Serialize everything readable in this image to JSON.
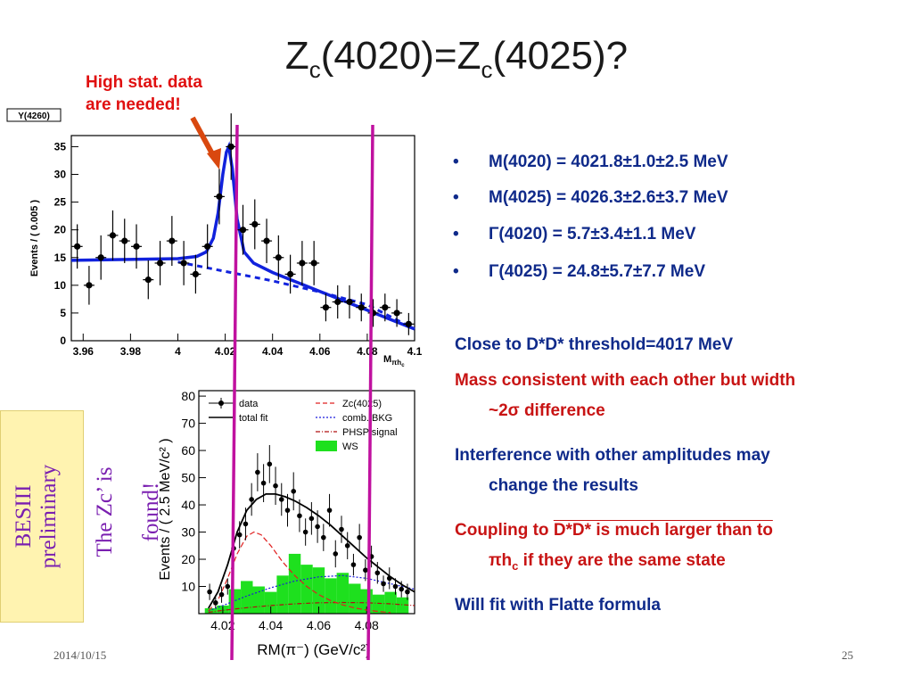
{
  "slide": {
    "title_main": "Z",
    "title_sub1": "c",
    "title_mid": "(4020)=Z",
    "title_sub2": "c",
    "title_end": "(4025)?",
    "annotation_line1": "High stat. data",
    "annotation_line2": "are needed!",
    "bullets": [
      "M(4020) = 4021.8±1.0±2.5 MeV",
      "M(4025) = 4026.3±2.6±3.7 MeV",
      "Γ(4020) =   5.7±3.4±1.1 MeV",
      "Γ(4025) = 24.8±5.7±7.7 MeV"
    ],
    "bullet_symbol": "•",
    "para1": "Close to D*D* threshold=4017 MeV",
    "para2_line1": "Mass consistent with each other but width",
    "para2_line2": "~2σ difference",
    "para3_line1": "Interference with other amplitudes may",
    "para3_line2": "change the results",
    "para4_line1a": "Coupling to ",
    "para4_line1b": "D*D* is much larger than to",
    "para4_line2a": "πh",
    "para4_line2sub": "c",
    "para4_line2b": " if they are the same state",
    "para5": "Will fit with Flatte formula",
    "besiii_label1": "BESIII",
    "besiii_label2": "preliminary",
    "zc_label1": "The Zc’ is",
    "zc_label2": "found!",
    "date": "2014/10/15",
    "page_number": "25"
  },
  "colors": {
    "blue_text": "#0f2a8a",
    "red_text": "#c81414",
    "arrow": "#d9480f",
    "magenta_lines": "#c0119f",
    "fit_blue": "#1122dd",
    "ws_green": "#1ee01e"
  },
  "chart_data": [
    {
      "type": "scatter",
      "label_box": "Y(4260)",
      "ylabel": "Events / ( 0.005 )",
      "xlabel": "M",
      "xlabel_sub": "πh",
      "xlabel_subsub": "c",
      "xlim": [
        3.955,
        4.1
      ],
      "ylim": [
        0,
        37
      ],
      "xticks": [
        "3.96",
        "3.98",
        "4",
        "4.02",
        "4.04",
        "4.06",
        "4.08",
        "4.1"
      ],
      "xtick_values": [
        3.96,
        3.98,
        4.0,
        4.02,
        4.04,
        4.06,
        4.08,
        4.1
      ],
      "yticks": [
        "0",
        "5",
        "10",
        "15",
        "20",
        "25",
        "30",
        "35"
      ],
      "ytick_values": [
        0,
        5,
        10,
        15,
        20,
        25,
        30,
        35
      ],
      "points": {
        "x": [
          3.9575,
          3.9625,
          3.9675,
          3.9725,
          3.9775,
          3.9825,
          3.9875,
          3.9925,
          3.9975,
          4.0025,
          4.0075,
          4.0125,
          4.0175,
          4.0225,
          4.0275,
          4.0325,
          4.0375,
          4.0425,
          4.0475,
          4.0525,
          4.0575,
          4.0625,
          4.0675,
          4.0725,
          4.0775,
          4.0825,
          4.0875,
          4.0925,
          4.0975
        ],
        "y": [
          17,
          10,
          15,
          19,
          18,
          17,
          11,
          14,
          18,
          14,
          12,
          17,
          26,
          35,
          20,
          21,
          18,
          15,
          12,
          14,
          14,
          6,
          7,
          7,
          6,
          5,
          6,
          5,
          3
        ],
        "err": [
          4,
          3.5,
          4,
          4.5,
          4,
          4,
          3.5,
          4,
          4.5,
          4,
          3.5,
          4,
          5,
          6,
          4.5,
          4.5,
          4,
          4,
          3.5,
          4,
          4,
          2.5,
          3,
          3,
          2.5,
          2.5,
          2.5,
          2.5,
          2
        ]
      },
      "total_fit": {
        "x": [
          3.955,
          3.97,
          3.985,
          4.0,
          4.008,
          4.012,
          4.015,
          4.017,
          4.019,
          4.0205,
          4.0215,
          4.023,
          4.025,
          4.028,
          4.032,
          4.04,
          4.05,
          4.06,
          4.07,
          4.08,
          4.09,
          4.1
        ],
        "y": [
          14.5,
          14.6,
          14.7,
          14.8,
          15.2,
          16.0,
          18.5,
          23,
          30,
          34,
          35,
          31,
          22,
          16,
          14,
          12.3,
          10.6,
          8.9,
          7.2,
          5.5,
          3.8,
          2.1
        ]
      },
      "background": {
        "x": [
          4.0,
          4.02,
          4.04,
          4.06,
          4.08,
          4.1
        ],
        "y": [
          14.2,
          12.5,
          10.8,
          8.8,
          6.5,
          2.1
        ]
      }
    },
    {
      "type": "scatter",
      "ylabel": "Events / ( 2.5 MeV/c² )",
      "xlabel": "RM(π⁻) (GeV/c²)",
      "xlim": [
        4.01,
        4.1
      ],
      "ylim": [
        0,
        82
      ],
      "xticks": [
        "4.02",
        "4.04",
        "4.06",
        "4.08"
      ],
      "xtick_values": [
        4.02,
        4.04,
        4.06,
        4.08
      ],
      "yticks": [
        "10",
        "20",
        "30",
        "40",
        "50",
        "60",
        "70",
        "80"
      ],
      "ytick_values": [
        10,
        20,
        30,
        40,
        50,
        60,
        70,
        80
      ],
      "legend": [
        "data",
        "total fit",
        "Zc(4025)",
        "comb. BKG",
        "PHSP signal",
        "WS"
      ],
      "points": {
        "x": [
          4.0145,
          4.017,
          4.0195,
          4.022,
          4.0245,
          4.027,
          4.0295,
          4.032,
          4.0345,
          4.037,
          4.0395,
          4.042,
          4.0445,
          4.047,
          4.0495,
          4.052,
          4.0545,
          4.057,
          4.0595,
          4.062,
          4.0645,
          4.067,
          4.0695,
          4.072,
          4.0745,
          4.077,
          4.0795,
          4.082,
          4.0845,
          4.087,
          4.0895,
          4.092,
          4.0945,
          4.097
        ],
        "y": [
          8,
          4,
          7,
          10,
          24,
          29,
          33,
          42,
          52,
          48,
          55,
          47,
          42,
          38,
          45,
          36,
          30,
          35,
          32,
          28,
          38,
          22,
          31,
          25,
          18,
          28,
          16,
          21,
          15,
          11,
          13,
          10,
          9,
          8
        ],
        "err": [
          3,
          2,
          3,
          3,
          5,
          5,
          6,
          6,
          7,
          7,
          7,
          7,
          6,
          6,
          7,
          6,
          5,
          6,
          6,
          5,
          6,
          5,
          5,
          5,
          4,
          5,
          4,
          4,
          4,
          3,
          4,
          3,
          3,
          3
        ]
      },
      "total_fit": {
        "x": [
          4.014,
          4.018,
          4.022,
          4.026,
          4.03,
          4.034,
          4.038,
          4.042,
          4.046,
          4.05,
          4.055,
          4.06,
          4.065,
          4.07,
          4.075,
          4.08,
          4.085,
          4.09,
          4.095,
          4.1
        ],
        "y": [
          2,
          8,
          18,
          30,
          38,
          42,
          44,
          44,
          43,
          41.5,
          39,
          36,
          32.5,
          28.5,
          24.5,
          20.5,
          17,
          13.5,
          10.5,
          8
        ]
      },
      "zc_curve": {
        "x": [
          4.014,
          4.018,
          4.022,
          4.026,
          4.03,
          4.033,
          4.036,
          4.04,
          4.045,
          4.05,
          4.055,
          4.06,
          4.065,
          4.07,
          4.075,
          4.08,
          4.085,
          4.09
        ],
        "y": [
          1,
          5,
          13,
          22,
          28.5,
          30,
          29,
          25,
          19,
          14,
          10,
          7,
          4.8,
          3.2,
          2.1,
          1.3,
          0.8,
          0.4
        ]
      },
      "comb_bkg": {
        "x": [
          4.014,
          4.02,
          4.03,
          4.04,
          4.05,
          4.06,
          4.07,
          4.08,
          4.09,
          4.1
        ],
        "y": [
          1,
          3,
          6.5,
          9.5,
          12,
          13.5,
          14,
          13,
          11,
          9
        ]
      },
      "phsp": {
        "x": [
          4.014,
          4.02,
          4.03,
          4.04,
          4.05,
          4.06,
          4.07,
          4.08,
          4.09,
          4.1
        ],
        "y": [
          0.5,
          1.2,
          2.2,
          3.0,
          3.6,
          4.0,
          4.1,
          4.0,
          3.6,
          3.0
        ]
      },
      "ws_hist": {
        "edges": [
          4.0125,
          4.0175,
          4.0225,
          4.0275,
          4.0325,
          4.0375,
          4.0425,
          4.0475,
          4.0525,
          4.0575,
          4.0625,
          4.0675,
          4.0725,
          4.0775,
          4.0825,
          4.0875,
          4.0925,
          4.0975
        ],
        "values": [
          2,
          3,
          9,
          12,
          10,
          8,
          14,
          22,
          18,
          17,
          13,
          15,
          11,
          9,
          7,
          8,
          6
        ]
      }
    }
  ]
}
